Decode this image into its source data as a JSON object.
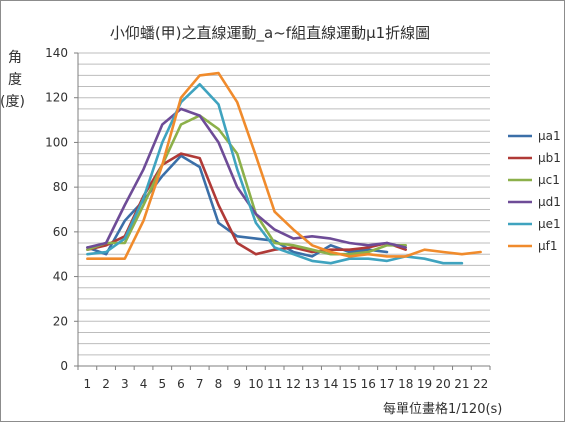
{
  "chart_data": {
    "type": "line",
    "title": "小仰蟠(甲)之直線運動_a~f組直線運動μ1折線圖",
    "xlabel": "每單位畫格1/120(s)",
    "ylabel_lines": [
      "角",
      "度",
      "(度)"
    ],
    "categories": [
      "1",
      "2",
      "3",
      "4",
      "5",
      "6",
      "7",
      "8",
      "9",
      "10",
      "11",
      "12",
      "13",
      "14",
      "15",
      "16",
      "17",
      "18",
      "19",
      "20",
      "21",
      "22"
    ],
    "ylim": [
      0,
      140
    ],
    "yticks": [
      0,
      20,
      40,
      60,
      80,
      100,
      120,
      140
    ],
    "grid": true,
    "legend_position": "right",
    "series": [
      {
        "name": "μa1",
        "color": "#3b6fa8",
        "values": [
          53,
          50,
          65,
          74,
          85,
          94,
          89,
          64,
          58,
          57,
          56,
          51,
          49,
          54,
          51,
          52,
          51,
          null,
          null,
          null,
          null,
          null
        ]
      },
      {
        "name": "μb1",
        "color": "#b03a37",
        "values": [
          52,
          54,
          58,
          76,
          90,
          95,
          93,
          72,
          55,
          50,
          52,
          53,
          51,
          52,
          52,
          53,
          55,
          52,
          null,
          null,
          null,
          null
        ]
      },
      {
        "name": "μc1",
        "color": "#8cb04a",
        "values": [
          52,
          55,
          55,
          72,
          90,
          108,
          112,
          106,
          95,
          68,
          55,
          54,
          52,
          50,
          50,
          51,
          54,
          54,
          null,
          null,
          null,
          null
        ]
      },
      {
        "name": "μd1",
        "color": "#6e4c97",
        "values": [
          53,
          55,
          72,
          88,
          108,
          115,
          112,
          100,
          80,
          68,
          61,
          57,
          58,
          57,
          55,
          54,
          55,
          53,
          null,
          null,
          null,
          null
        ]
      },
      {
        "name": "μe1",
        "color": "#3fa3bf",
        "values": [
          50,
          51,
          57,
          75,
          100,
          118,
          126,
          117,
          88,
          64,
          53,
          50,
          47,
          46,
          48,
          48,
          47,
          49,
          48,
          46,
          46,
          null
        ]
      },
      {
        "name": "μf1",
        "color": "#f08b2c",
        "values": [
          48,
          48,
          48,
          65,
          90,
          120,
          130,
          131,
          118,
          94,
          69,
          61,
          54,
          51,
          49,
          50,
          49,
          49,
          52,
          51,
          50,
          51
        ]
      }
    ]
  }
}
